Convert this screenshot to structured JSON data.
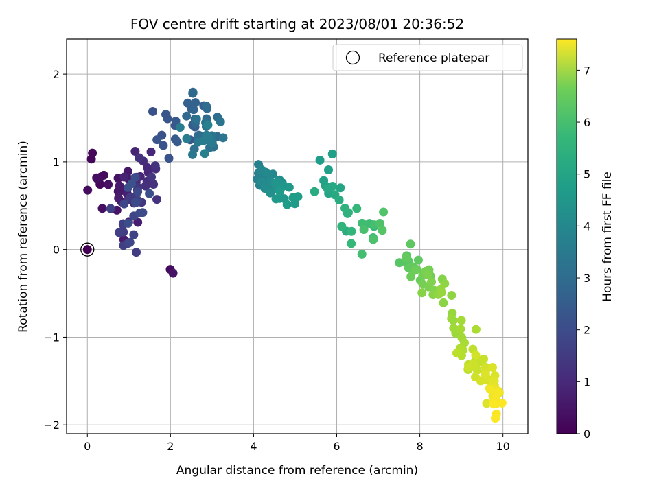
{
  "chart_data": {
    "type": "scatter",
    "title": "FOV centre drift starting at 2023/08/01 20:36:52",
    "xlabel": "Angular distance from reference (arcmin)",
    "ylabel": "Rotation from reference (arcmin)",
    "xlim": [
      -0.5,
      10.6
    ],
    "ylim": [
      -2.1,
      2.4
    ],
    "xticks": [
      0,
      2,
      4,
      6,
      8,
      10
    ],
    "yticks": [
      -2,
      -1,
      0,
      1,
      2
    ],
    "grid": true,
    "legend": {
      "label": "Reference platepar",
      "position": "top-right"
    },
    "reference_point": {
      "x": 0,
      "y": 0
    },
    "colorbar": {
      "label": "Hours from first FF file",
      "colormap": "viridis",
      "min": 0,
      "max": 7.6,
      "ticks": [
        0,
        1,
        2,
        3,
        4,
        5,
        6,
        7
      ]
    },
    "point_color": "viridis(hours)",
    "segments": [
      {
        "t0": 0.1,
        "t1": 1.9,
        "n": 70,
        "path": [
          [
            0.15,
            0.85
          ],
          [
            0.9,
            0.6
          ],
          [
            1.6,
            0.9
          ],
          [
            0.9,
            0.2
          ],
          [
            1.2,
            0.6
          ]
        ],
        "sx": 0.35,
        "sy": 0.38
      },
      {
        "t0": 0.2,
        "t1": 0.4,
        "n": 2,
        "path": [
          [
            2.0,
            -0.22
          ],
          [
            2.05,
            -0.26
          ]
        ],
        "sx": 0.02,
        "sy": 0.02
      },
      {
        "t0": 1.9,
        "t1": 3.3,
        "n": 55,
        "path": [
          [
            1.7,
            1.2
          ],
          [
            2.6,
            1.55
          ],
          [
            3.0,
            1.35
          ],
          [
            2.6,
            1.2
          ]
        ],
        "sx": 0.4,
        "sy": 0.3
      },
      {
        "t0": 3.3,
        "t1": 4.2,
        "n": 38,
        "path": [
          [
            4.0,
            0.9
          ],
          [
            4.5,
            0.75
          ],
          [
            5.0,
            0.6
          ]
        ],
        "sx": 0.3,
        "sy": 0.15
      },
      {
        "t0": 4.2,
        "t1": 5.6,
        "n": 32,
        "path": [
          [
            5.6,
            1.0
          ],
          [
            6.0,
            0.5
          ],
          [
            6.6,
            0.3
          ],
          [
            7.1,
            0.1
          ]
        ],
        "sx": 0.3,
        "sy": 0.25
      },
      {
        "t0": 5.6,
        "t1": 6.4,
        "n": 30,
        "path": [
          [
            7.7,
            -0.1
          ],
          [
            8.1,
            -0.3
          ],
          [
            8.5,
            -0.55
          ]
        ],
        "sx": 0.25,
        "sy": 0.18
      },
      {
        "t0": 6.4,
        "t1": 7.1,
        "n": 28,
        "path": [
          [
            8.8,
            -0.8
          ],
          [
            9.2,
            -1.15
          ],
          [
            9.4,
            -1.35
          ]
        ],
        "sx": 0.25,
        "sy": 0.17
      },
      {
        "t0": 7.1,
        "t1": 7.6,
        "n": 32,
        "path": [
          [
            9.6,
            -1.45
          ],
          [
            9.8,
            -1.6
          ],
          [
            9.85,
            -1.75
          ]
        ],
        "sx": 0.16,
        "sy": 0.14
      }
    ]
  }
}
